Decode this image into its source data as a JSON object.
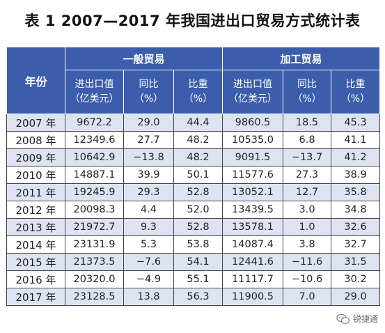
{
  "title": "表 1  2007—2017 年我国进出口贸易方式统计表",
  "header": {
    "year": "年份",
    "groups": [
      "一般贸易",
      "加工贸易"
    ],
    "columns": [
      {
        "line1": "进出口值",
        "line2": "（亿美元）"
      },
      {
        "line1": "同比",
        "line2": "（%）"
      },
      {
        "line1": "比重",
        "line2": "（%）"
      },
      {
        "line1": "进出口值",
        "line2": "（亿美元）"
      },
      {
        "line1": "同比",
        "line2": "（%）"
      },
      {
        "line1": "比重",
        "line2": "（%）"
      }
    ]
  },
  "rows": [
    [
      "2007 年",
      "9672.2",
      "29.0",
      "44.4",
      "9860.5",
      "18.5",
      "45.3"
    ],
    [
      "2008 年",
      "12349.6",
      "27.7",
      "48.2",
      "10535.0",
      "6.8",
      "41.1"
    ],
    [
      "2009 年",
      "10642.9",
      "−13.8",
      "48.2",
      "9091.5",
      "−13.7",
      "41.2"
    ],
    [
      "2010 年",
      "14887.1",
      "39.9",
      "50.1",
      "11577.6",
      "27.3",
      "38.9"
    ],
    [
      "2011 年",
      "19245.9",
      "29.3",
      "52.8",
      "13052.1",
      "12.7",
      "35.8"
    ],
    [
      "2012 年",
      "20098.3",
      "4.4",
      "52.0",
      "13439.5",
      "3.0",
      "34.8"
    ],
    [
      "2013 年",
      "21972.7",
      "9.3",
      "52.8",
      "13578.1",
      "1.0",
      "32.6"
    ],
    [
      "2014 年",
      "23131.9",
      "5.3",
      "53.8",
      "14087.4",
      "3.8",
      "32.7"
    ],
    [
      "2015 年",
      "21373.5",
      "−7.6",
      "54.1",
      "12441.6",
      "−11.6",
      "31.5"
    ],
    [
      "2016 年",
      "20320.0",
      "−4.9",
      "55.1",
      "11117.7",
      "−10.6",
      "30.2"
    ],
    [
      "2017 年",
      "23128.5",
      "13.8",
      "56.3",
      "11900.5",
      "7.0",
      "29.0"
    ]
  ],
  "watermark": {
    "text": "锐捷通",
    "icon": "wechat-icon"
  }
}
